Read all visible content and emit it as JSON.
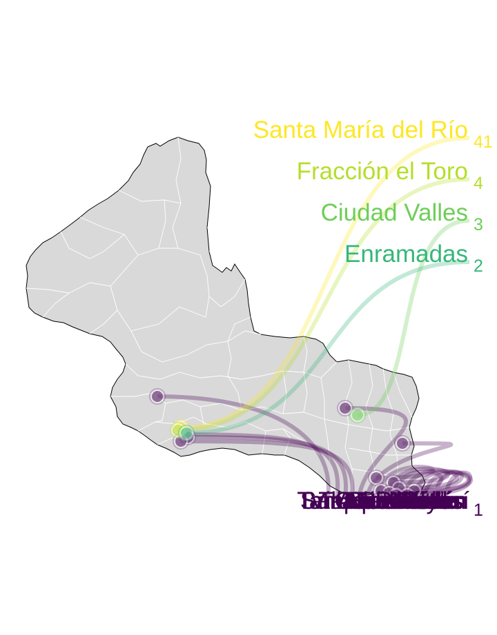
{
  "map": {
    "region": "San Luis Potosí",
    "fill_color": "#d9d9d9",
    "border_color": "#ffffff",
    "outline_color": "#000000"
  },
  "colors": {
    "count_41": "#fde725",
    "count_4": "#b5de2b",
    "count_3": "#6ece58",
    "count_2": "#35b779",
    "count_1": "#440154"
  },
  "top_labels": [
    {
      "name": "Santa María del Río",
      "count": "41",
      "color": "#fde725"
    },
    {
      "name": "Fracción el Toro",
      "count": "4",
      "color": "#b5de2b"
    },
    {
      "name": "Ciudad Valles",
      "count": "3",
      "color": "#6ece58"
    },
    {
      "name": "Enramadas",
      "count": "2",
      "color": "#35b779"
    }
  ],
  "bottom_labels": [
    {
      "name": "San Luis Potosí",
      "count": ""
    },
    {
      "name": "San Martín",
      "count": ""
    },
    {
      "name": "Villa de Reyes",
      "count": ""
    },
    {
      "name": "Matehuala",
      "count": ""
    },
    {
      "name": "El Rosario",
      "count": ""
    },
    {
      "name": "Rioverde",
      "count": ""
    },
    {
      "name": "Tamazunchale",
      "count": ""
    },
    {
      "name": "Xilitla",
      "count": ""
    },
    {
      "name": "Tancanhuitz",
      "count": ""
    },
    {
      "name": "Aquismón",
      "count": ""
    },
    {
      "name": "Coxcatlán",
      "count": ""
    },
    {
      "name": "Axtla",
      "count": ""
    },
    {
      "name": "Tampamolón",
      "count": ""
    },
    {
      "name": "Huehuetlán",
      "count": "1"
    }
  ]
}
